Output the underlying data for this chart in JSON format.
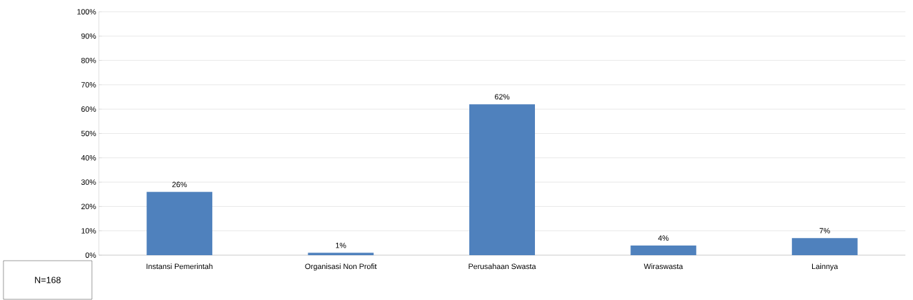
{
  "chart_data": {
    "type": "bar",
    "categories": [
      "Instansi Pemerintah",
      "Organisasi Non Profit",
      "Perusahaan Swasta",
      "Wiraswasta",
      "Lainnya"
    ],
    "values": [
      26,
      1,
      62,
      4,
      7
    ],
    "value_labels": [
      "26%",
      "1%",
      "62%",
      "4%",
      "7%"
    ],
    "color": "#4f81bd",
    "ylim": [
      0,
      100
    ],
    "yticks": [
      {
        "value": 0,
        "label": "0%"
      },
      {
        "value": 10,
        "label": "10%"
      },
      {
        "value": 20,
        "label": "20%"
      },
      {
        "value": 30,
        "label": "30%"
      },
      {
        "value": 40,
        "label": "40%"
      },
      {
        "value": 50,
        "label": "50%"
      },
      {
        "value": 60,
        "label": "60%"
      },
      {
        "value": 70,
        "label": "70%"
      },
      {
        "value": 80,
        "label": "80%"
      },
      {
        "value": 90,
        "label": "90%"
      },
      {
        "value": 100,
        "label": "100%"
      }
    ],
    "grid": "y",
    "annotations": [
      "N=168"
    ]
  }
}
